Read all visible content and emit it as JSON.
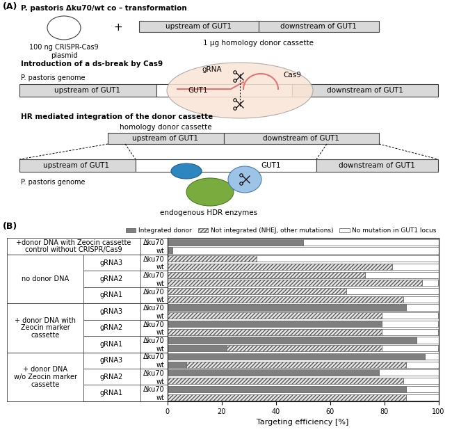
{
  "panel_a": {
    "label": "(A)",
    "transformation": {
      "title": "P. pastoris Δku70/wt co – transformation",
      "plasmid": "100 ng CRISPR-Cas9\nplasmid",
      "plus": "+",
      "donor_upstream": "upstream of GUT1",
      "donor_downstream": "downstream of GUT1",
      "caption": "1 µg homology donor cassette"
    },
    "ds_break": {
      "title": "Introduction of a ds-break by Cas9",
      "genome_label": "P. pastoris genome",
      "segments": [
        "upstream of GUT1",
        "GUT1",
        "downstream of GUT1"
      ],
      "grna": "gRNA",
      "cas9": "Cas9"
    },
    "hr_integration": {
      "title": "HR mediated integration of the donor cassette",
      "donor_label": "homology donor cassette",
      "donor_upstream": "upstream of GUT1",
      "donor_downstream": "downstream of GUT1",
      "genome_label": "P. pastoris genome",
      "segments": [
        "upstream of GUT1",
        "GUT1",
        "downstream of GUT1"
      ],
      "enzymes": "endogenous HDR enzymes"
    }
  },
  "panel_b_label": "(B)",
  "chart_data": {
    "type": "bar",
    "orientation": "horizontal",
    "stacked": true,
    "xlabel": "Targeting efficiency [%]",
    "xlim": [
      0,
      100
    ],
    "xticks": [
      0,
      20,
      40,
      60,
      80,
      100
    ],
    "legend": "upper center",
    "groups": [
      {
        "label": "+donor DNA with Zeocin cassette\ncontrol without CRISPR/Cas9",
        "subgroups": [
          {
            "categories": [
              "Δku70",
              "wt"
            ]
          }
        ]
      },
      {
        "label": "no donor DNA",
        "subgroups": [
          {
            "label": "gRNA3",
            "categories": [
              "Δku70",
              "wt"
            ]
          },
          {
            "label": "gRNA2",
            "categories": [
              "Δku70",
              "wt"
            ]
          },
          {
            "label": "gRNA1",
            "categories": [
              "Δku70",
              "wt"
            ]
          }
        ]
      },
      {
        "label": "+ donor DNA with\nZeocin marker\ncassette",
        "subgroups": [
          {
            "label": "gRNA3",
            "categories": [
              "Δku70",
              "wt"
            ]
          },
          {
            "label": "gRNA2",
            "categories": [
              "Δku70",
              "wt"
            ]
          },
          {
            "label": "gRNA1",
            "categories": [
              "Δku70",
              "wt"
            ]
          }
        ]
      },
      {
        "label": "+ donor DNA\nw/o Zeocin marker\ncassette",
        "subgroups": [
          {
            "label": "gRNA3",
            "categories": [
              "Δku70",
              "wt"
            ]
          },
          {
            "label": "gRNA2",
            "categories": [
              "Δku70",
              "wt"
            ]
          },
          {
            "label": "gRNA1",
            "categories": [
              "Δku70",
              "wt"
            ]
          }
        ]
      }
    ],
    "series": [
      {
        "name": "Integrated donor",
        "color": "#7f7f7f",
        "values": [
          50,
          2,
          0,
          0,
          0,
          0,
          0,
          0,
          88,
          0,
          79,
          0,
          92,
          22,
          95,
          7,
          78,
          0,
          88,
          0
        ]
      },
      {
        "name": "Not integrated (NHEJ, other mutations)",
        "color": "#e7e6e6",
        "values": [
          0,
          0,
          33,
          83,
          73,
          94,
          66,
          87,
          0,
          79,
          0,
          79,
          0,
          57,
          0,
          81,
          0,
          87,
          0,
          88
        ]
      },
      {
        "name": "No mutation in GUT1 locus",
        "color": "#ffffff",
        "values": [
          50,
          98,
          67,
          17,
          27,
          6,
          34,
          13,
          12,
          21,
          21,
          21,
          8,
          21,
          5,
          12,
          22,
          13,
          12,
          12
        ]
      }
    ]
  }
}
